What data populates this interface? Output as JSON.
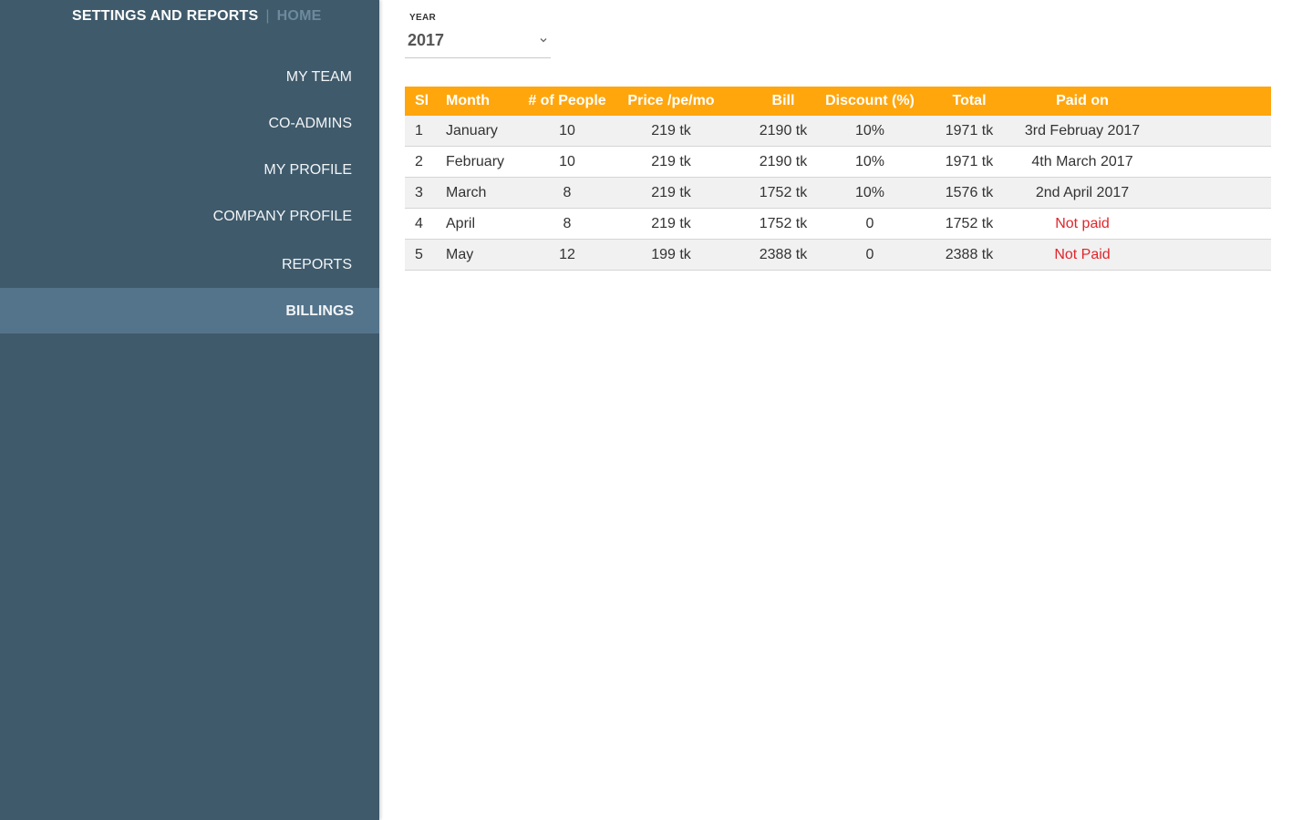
{
  "sidebar": {
    "title": "SETTINGS AND REPORTS",
    "separator": "|",
    "home": "HOME",
    "items": [
      {
        "label": "MY TEAM"
      },
      {
        "label": "CO-ADMINS"
      },
      {
        "label": "MY PROFILE"
      },
      {
        "label": "COMPANY PROFILE"
      },
      {
        "label": "REPORTS"
      },
      {
        "label": "BILLINGS",
        "active": true
      }
    ]
  },
  "year": {
    "label": "YEAR",
    "value": "2017",
    "icon": "chevron-down-icon"
  },
  "colors": {
    "sidebar_bg": "#3f5a6b",
    "sidebar_active": "#54748b",
    "table_header": "#ffa60d",
    "unpaid": "#e0262b"
  },
  "table": {
    "headers": [
      "Sl",
      "Month",
      "# of People",
      "Price /pe/mo",
      "Bill",
      "Discount (%)",
      "Total",
      "Paid on"
    ],
    "rows": [
      [
        "1",
        "January",
        "10",
        "219 tk",
        "2190 tk",
        "10%",
        "1971 tk",
        "3rd Februay 2017"
      ],
      [
        "2",
        "February",
        "10",
        "219 tk",
        "2190 tk",
        "10%",
        "1971 tk",
        "4th March 2017"
      ],
      [
        "3",
        "March",
        "8",
        "219 tk",
        "1752 tk",
        "10%",
        "1576 tk",
        "2nd April 2017"
      ],
      [
        "4",
        "April",
        "8",
        "219 tk",
        "1752 tk",
        "0",
        "1752 tk",
        "Not paid"
      ],
      [
        "5",
        "May",
        "12",
        "199 tk",
        "2388 tk",
        "0",
        "2388 tk",
        "Not Paid"
      ]
    ]
  }
}
